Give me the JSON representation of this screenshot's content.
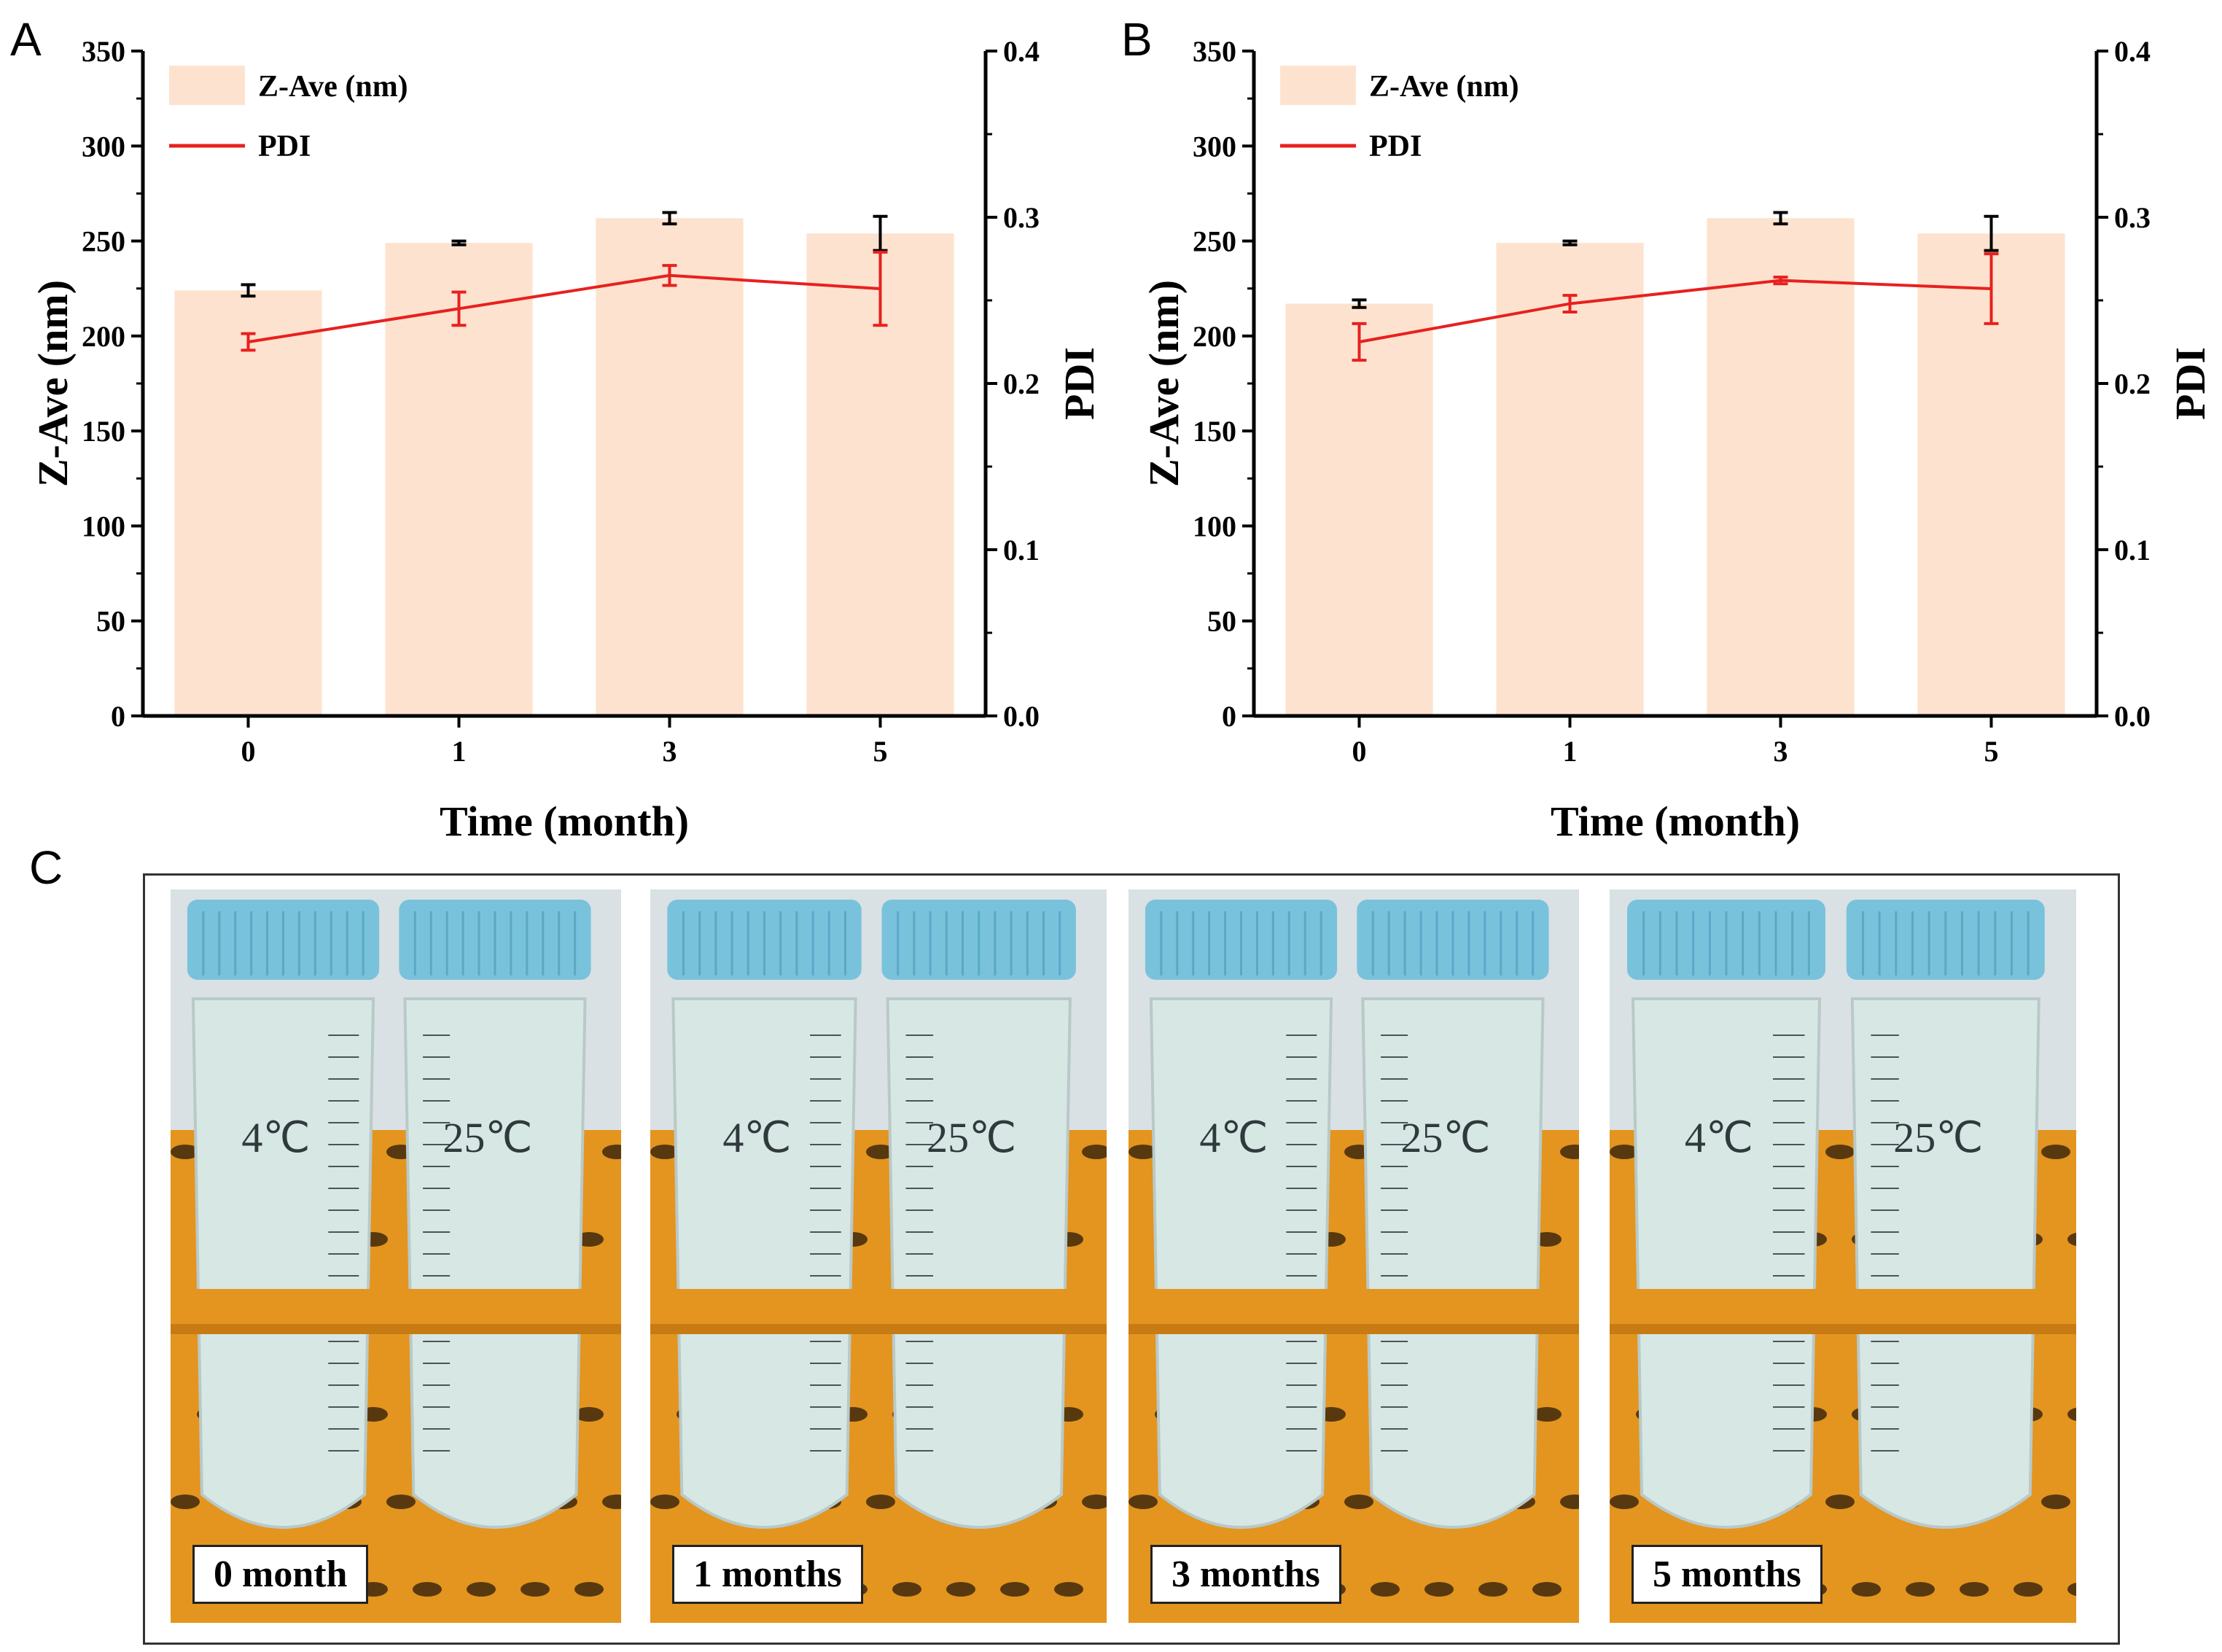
{
  "panels": {
    "a": "A",
    "b": "B",
    "c": "C"
  },
  "chart_data": [
    {
      "type": "bar",
      "panel": "A",
      "categories": [
        "0",
        "1",
        "3",
        "5"
      ],
      "xlabel": "Time (month)",
      "ylabel": "Z-Ave (nm)",
      "y2label": "PDI",
      "ylim": [
        0,
        350
      ],
      "y2lim": [
        0,
        0.4
      ],
      "yticks": [
        0,
        50,
        100,
        150,
        200,
        250,
        300,
        350
      ],
      "y2ticks": [
        0.0,
        0.1,
        0.2,
        0.3,
        0.4
      ],
      "legend_position": "top-left",
      "series": [
        {
          "name": "Z-Ave (nm)",
          "kind": "bar",
          "axis": "left",
          "color": "#fde3cf",
          "values": [
            224,
            249,
            262,
            254
          ],
          "errors": [
            3,
            1,
            3,
            9
          ],
          "error_color": "#000000"
        },
        {
          "name": "PDI",
          "kind": "line",
          "axis": "right",
          "color": "#e8201f",
          "values": [
            0.225,
            0.245,
            0.265,
            0.257
          ],
          "errors": [
            0.005,
            0.01,
            0.006,
            0.022
          ]
        }
      ]
    },
    {
      "type": "bar",
      "panel": "B",
      "categories": [
        "0",
        "1",
        "3",
        "5"
      ],
      "xlabel": "Time (month)",
      "ylabel": "Z-Ave (nm)",
      "y2label": "PDI",
      "ylim": [
        0,
        350
      ],
      "y2lim": [
        0,
        0.4
      ],
      "yticks": [
        0,
        50,
        100,
        150,
        200,
        250,
        300,
        350
      ],
      "y2ticks": [
        0.0,
        0.1,
        0.2,
        0.3,
        0.4
      ],
      "legend_position": "top-left",
      "series": [
        {
          "name": "Z-Ave (nm)",
          "kind": "bar",
          "axis": "left",
          "color": "#fde3cf",
          "values": [
            217,
            249,
            262,
            254
          ],
          "errors": [
            2,
            1,
            3,
            9
          ],
          "error_color": "#000000"
        },
        {
          "name": "PDI",
          "kind": "line",
          "axis": "right",
          "color": "#e8201f",
          "values": [
            0.225,
            0.248,
            0.262,
            0.257
          ],
          "errors": [
            0.011,
            0.005,
            0.002,
            0.021
          ]
        }
      ]
    }
  ],
  "photos": [
    {
      "label": "0 month",
      "tube_labels": [
        "4℃",
        "25℃"
      ]
    },
    {
      "label": "1 months",
      "tube_labels": [
        "4℃",
        "25℃"
      ]
    },
    {
      "label": "3 months",
      "tube_labels": [
        "4℃",
        "25℃"
      ]
    },
    {
      "label": "5 months",
      "tube_labels": [
        "4℃",
        "25℃"
      ]
    }
  ],
  "colors": {
    "cap": "#79c2dc",
    "liquid": "#d7e7e4",
    "rack": "#e3951f",
    "rack_shadow": "#c77b12"
  }
}
